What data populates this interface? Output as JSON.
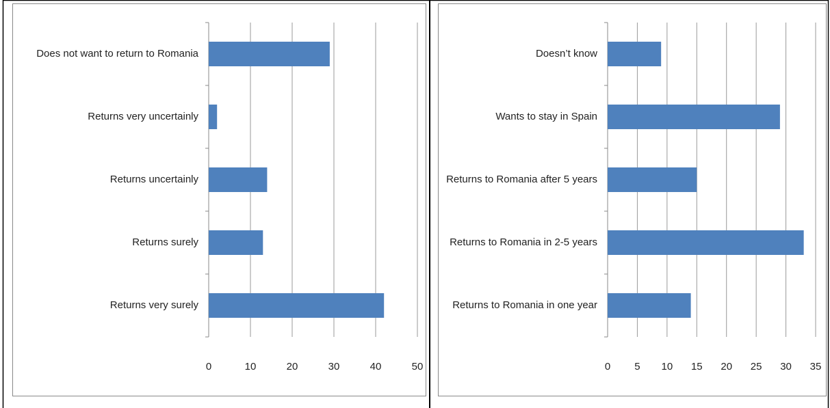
{
  "chart_data": [
    {
      "type": "bar",
      "orientation": "horizontal",
      "color": "#4f81bd",
      "categories": [
        "Does not want to return to Romania",
        "Returns very uncertainly",
        "Returns uncertainly",
        "Returns surely",
        "Returns very surely"
      ],
      "values": [
        29,
        2,
        14,
        13,
        42
      ],
      "xlim": [
        0,
        50
      ],
      "xticks": [
        0,
        10,
        20,
        30,
        40,
        50
      ],
      "grid": true
    },
    {
      "type": "bar",
      "orientation": "horizontal",
      "color": "#4f81bd",
      "categories": [
        "Doesn’t know",
        "Wants to stay in Spain",
        "Returns to Romania after 5 years",
        "Returns to Romania in 2-5 years",
        "Returns to Romania in one year"
      ],
      "values": [
        9,
        29,
        15,
        33,
        14
      ],
      "xlim": [
        0,
        35
      ],
      "xticks": [
        0,
        5,
        10,
        15,
        20,
        25,
        30,
        35
      ],
      "grid": true
    }
  ]
}
